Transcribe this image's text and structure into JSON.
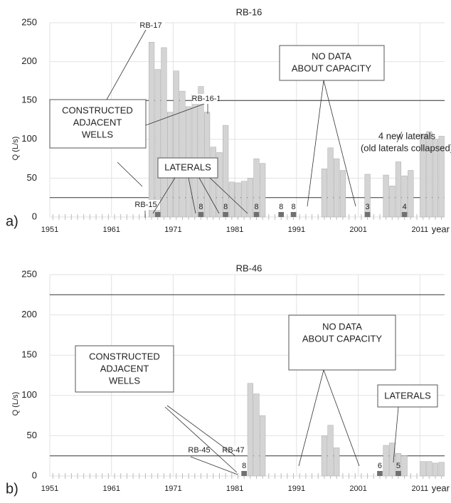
{
  "chart_data": [
    {
      "type": "bar",
      "title": "RB-16",
      "panel_label": "a)",
      "ylabel": "Q (L/s)",
      "xlabel": "year",
      "color": "#d4d4d4",
      "x": [
        1967,
        1968,
        1969,
        1970,
        1971,
        1972,
        1973,
        1974,
        1975,
        1976,
        1977,
        1978,
        1979,
        1980,
        1981,
        1982,
        1983,
        1984,
        1985,
        1995,
        1996,
        1997,
        1998,
        2002,
        2005,
        2006,
        2007,
        2008,
        2009,
        2011,
        2012,
        2013,
        2014
      ],
      "values": [
        225,
        190,
        218,
        135,
        188,
        162,
        142,
        158,
        168,
        135,
        90,
        83,
        118,
        45,
        44,
        46,
        50,
        75,
        69,
        62,
        89,
        75,
        60,
        55,
        54,
        40,
        71,
        53,
        60,
        107,
        110,
        100,
        104
      ],
      "laterals": {
        "color": "#707070",
        "x": [
          1968,
          1975,
          1979,
          1984,
          1988,
          1990,
          2002,
          2008
        ],
        "values": [
          8,
          8,
          8,
          8,
          8,
          8,
          3,
          4
        ]
      },
      "reference_lines": [
        25,
        150
      ],
      "xlim": [
        1951,
        2015
      ],
      "xticks": [
        1951,
        1961,
        1971,
        1981,
        1991,
        2001,
        2011
      ],
      "ylim": [
        0,
        250
      ],
      "yticks": [
        0,
        50,
        100,
        150,
        200,
        250
      ],
      "grid": true,
      "annotations": [
        {
          "lines": [
            "CONSTRUCTED",
            "ADJACENT",
            "WELLS"
          ]
        },
        {
          "lines": [
            "LATERALS"
          ]
        },
        {
          "lines": [
            "NO DATA",
            "ABOUT CAPACITY"
          ]
        },
        {
          "lines": [
            "4 new laterals",
            "(old laterals collapsed)"
          ]
        }
      ],
      "well_labels": [
        "RB-17",
        "RB-16-1",
        "RB-15"
      ]
    },
    {
      "type": "bar",
      "title": "RB-46",
      "panel_label": "b)",
      "ylabel": "Q (L/s)",
      "xlabel": "year",
      "color": "#d4d4d4",
      "x": [
        1983,
        1984,
        1985,
        1995,
        1996,
        1997,
        2005,
        2006,
        2007,
        2008,
        2011,
        2012,
        2013,
        2014
      ],
      "values": [
        115,
        102,
        75,
        50,
        63,
        35,
        38,
        41,
        28,
        25,
        18,
        18,
        16,
        17
      ],
      "laterals": {
        "color": "#707070",
        "x": [
          1982,
          2004,
          2007
        ],
        "values": [
          8,
          6,
          5
        ]
      },
      "reference_lines": [
        25,
        225
      ],
      "xlim": [
        1951,
        2015
      ],
      "xticks": [
        1951,
        1961,
        1971,
        1981,
        1991,
        2001,
        2011
      ],
      "ylim": [
        0,
        250
      ],
      "yticks": [
        0,
        50,
        100,
        150,
        200,
        250
      ],
      "grid": true,
      "annotations": [
        {
          "lines": [
            "CONSTRUCTED",
            "ADJACENT",
            "WELLS"
          ]
        },
        {
          "lines": [
            "NO DATA",
            "ABOUT CAPACITY"
          ]
        },
        {
          "lines": [
            "LATERALS"
          ]
        }
      ],
      "well_labels": [
        "RB-45",
        "RB-47"
      ]
    }
  ]
}
